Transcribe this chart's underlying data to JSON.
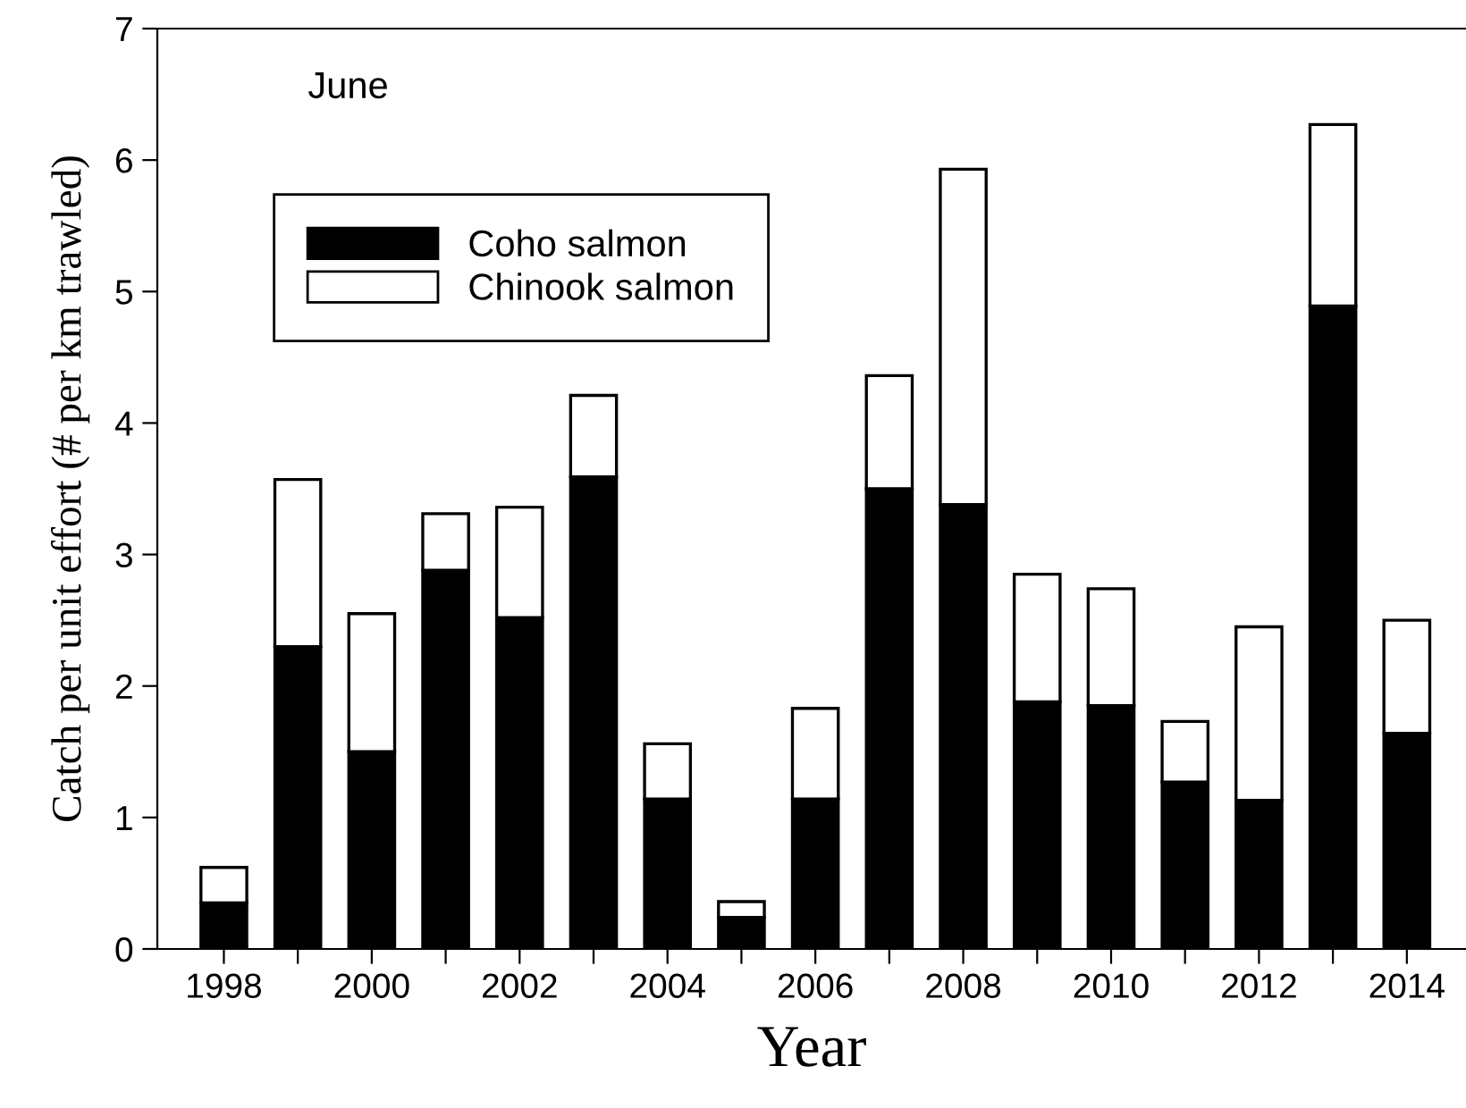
{
  "chart_data": {
    "type": "bar",
    "stacked": true,
    "xlabel": "Year",
    "ylabel": "Catch per unit effort (# per km trawled)",
    "annotations": [
      "June"
    ],
    "x": [
      1998,
      1999,
      2000,
      2001,
      2002,
      2003,
      2004,
      2005,
      2006,
      2007,
      2008,
      2009,
      2010,
      2011,
      2012,
      2013,
      2014
    ],
    "series": [
      {
        "name": "Coho salmon",
        "color": "#000000",
        "values": [
          0.35,
          2.3,
          1.5,
          2.88,
          2.52,
          3.59,
          1.14,
          0.24,
          1.14,
          3.5,
          3.38,
          1.88,
          1.85,
          1.27,
          1.13,
          4.89,
          1.64
        ]
      },
      {
        "name": "Chinook salmon",
        "color": "#ffffff",
        "values": [
          0.27,
          1.27,
          1.05,
          0.43,
          0.84,
          0.62,
          0.42,
          0.12,
          0.69,
          0.86,
          2.55,
          0.97,
          0.89,
          0.46,
          1.32,
          1.38,
          0.86
        ]
      }
    ],
    "xlim": [
      1997.1,
      2014.8
    ],
    "xticks": [
      1998,
      {
        "value": 1999,
        "label": null
      },
      2000,
      {
        "value": 2001,
        "label": null
      },
      2002,
      {
        "value": 2003,
        "label": null
      },
      2004,
      {
        "value": 2005,
        "label": null
      },
      2006,
      {
        "value": 2007,
        "label": null
      },
      2008,
      {
        "value": 2009,
        "label": null
      },
      2010,
      {
        "value": 2011,
        "label": null
      },
      2012,
      {
        "value": 2013,
        "label": null
      },
      2014
    ],
    "ylim": [
      0,
      7
    ],
    "yticks": [
      0,
      1,
      2,
      3,
      4,
      5,
      6,
      7
    ],
    "grid": false,
    "legend": "top left"
  }
}
